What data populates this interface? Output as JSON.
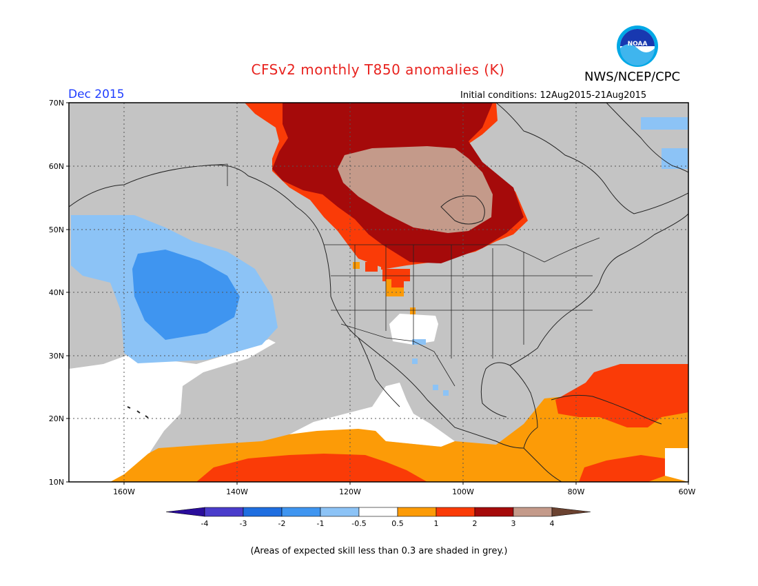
{
  "title": "CFSv2 monthly T850 anomalies (K)",
  "agency": "NWS/NCEP/CPC",
  "logo_text": "NOAA",
  "month": "Dec 2015",
  "initial_conditions": "Initial conditions: 12Aug2015-21Aug2015",
  "footer": "(Areas of expected skill less than 0.3 are shaded in grey.)",
  "map": {
    "projection": "lat-lon",
    "lon_range": [
      -172,
      -60
    ],
    "lat_range": [
      10,
      70
    ],
    "lat_ticks": [
      "70N",
      "60N",
      "50N",
      "40N",
      "30N",
      "20N",
      "10N"
    ],
    "lon_ticks": [
      "160W",
      "140W",
      "120W",
      "100W",
      "80W",
      "60W"
    ],
    "low_skill_color": "#c4c4c4"
  },
  "colorbar": {
    "labels": [
      "-4",
      "-3",
      "-2",
      "-1",
      "-0.5",
      "0.5",
      "1",
      "2",
      "3",
      "4"
    ],
    "colors": [
      "#2a0d9b",
      "#4a3ccb",
      "#1f6ee0",
      "#3f95f0",
      "#8cc3f6",
      "#ffffff",
      "#fc9b07",
      "#fa3b07",
      "#a50a0a",
      "#c49a8a",
      "#6b4230"
    ]
  }
}
